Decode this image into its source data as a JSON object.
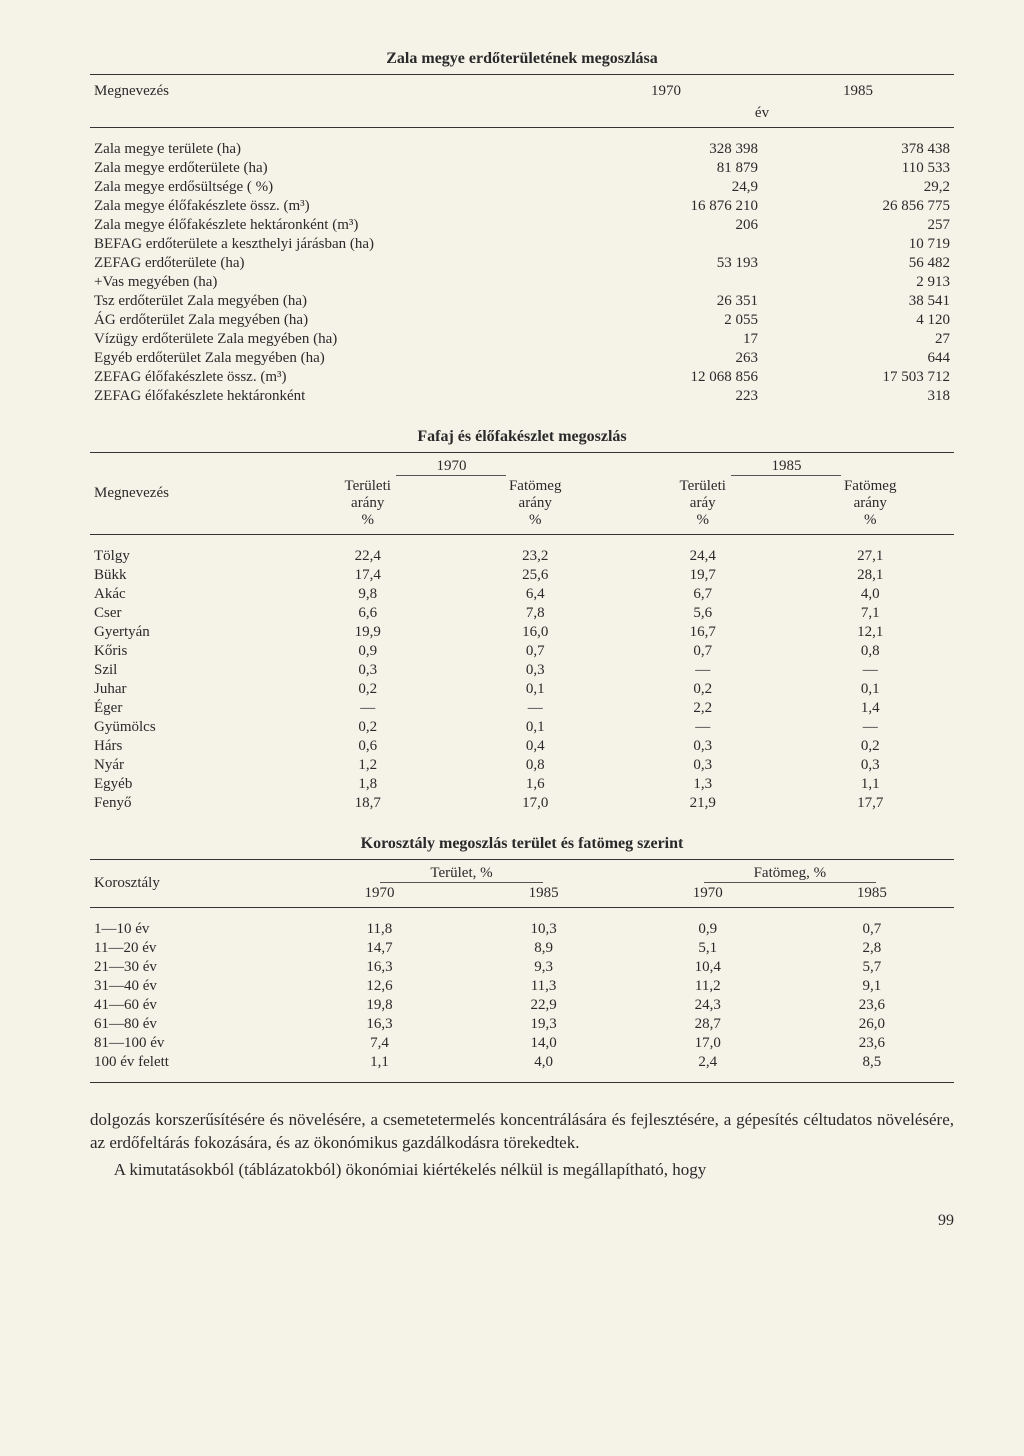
{
  "table1": {
    "title": "Zala megye erdőterületének megoszlása",
    "col_megnev": "Megnevezés",
    "col_1970": "1970",
    "col_1985": "1985",
    "col_ev": "év",
    "rows": [
      {
        "label": "Zala megye területe (ha)",
        "v1": "328 398",
        "v2": "378 438"
      },
      {
        "label": "Zala megye erdőterülete (ha)",
        "v1": "81 879",
        "v2": "110 533"
      },
      {
        "label": "Zala megye erdősültsége ( %)",
        "v1": "24,9",
        "v2": "29,2"
      },
      {
        "label": "Zala megye élőfakészlete össz. (m³)",
        "v1": "16 876 210",
        "v2": "26 856 775"
      },
      {
        "label": "Zala megye élőfakészlete hektáronként (m³)",
        "v1": "206",
        "v2": "257"
      },
      {
        "label": "BEFAG erdőterülete a keszthelyi járásban (ha)",
        "v1": "",
        "v2": "10 719"
      },
      {
        "label": "ZEFAG erdőterülete (ha)",
        "v1": "53 193",
        "v2": "56 482"
      },
      {
        "label": "+Vas megyében (ha)",
        "v1": "",
        "v2": "2 913"
      },
      {
        "label": "Tsz erdőterület Zala megyében (ha)",
        "v1": "26 351",
        "v2": "38 541"
      },
      {
        "label": "ÁG erdőterület Zala megyében (ha)",
        "v1": "2 055",
        "v2": "4 120"
      },
      {
        "label": "Vízügy erdőterülete Zala megyében (ha)",
        "v1": "17",
        "v2": "27"
      },
      {
        "label": "Egyéb erdőterület Zala megyében (ha)",
        "v1": "263",
        "v2": "644"
      },
      {
        "label": "ZEFAG élőfakészlete össz. (m³)",
        "v1": "12 068 856",
        "v2": "17 503 712"
      },
      {
        "label": "ZEFAG élőfakészlete hektáronként",
        "v1": "223",
        "v2": "318"
      }
    ]
  },
  "table2": {
    "title": "Fafaj és élőfakészlet megoszlás",
    "hdr_megnev": "Megnevezés",
    "hdr_1970": "1970",
    "hdr_1985": "1985",
    "hdr_ter": "Területi",
    "hdr_fat": "Fatömeg",
    "hdr_ar": "arány",
    "hdr_ary": "aráy",
    "hdr_pct": "%",
    "rows": [
      {
        "label": "Tölgy",
        "a": "22,4",
        "b": "23,2",
        "c": "24,4",
        "d": "27,1"
      },
      {
        "label": "Bükk",
        "a": "17,4",
        "b": "25,6",
        "c": "19,7",
        "d": "28,1"
      },
      {
        "label": "Akác",
        "a": "9,8",
        "b": "6,4",
        "c": "6,7",
        "d": "4,0"
      },
      {
        "label": "Cser",
        "a": "6,6",
        "b": "7,8",
        "c": "5,6",
        "d": "7,1"
      },
      {
        "label": "Gyertyán",
        "a": "19,9",
        "b": "16,0",
        "c": "16,7",
        "d": "12,1"
      },
      {
        "label": "Kőris",
        "a": "0,9",
        "b": "0,7",
        "c": "0,7",
        "d": "0,8"
      },
      {
        "label": "Szil",
        "a": "0,3",
        "b": "0,3",
        "c": "—",
        "d": "—"
      },
      {
        "label": "Juhar",
        "a": "0,2",
        "b": "0,1",
        "c": "0,2",
        "d": "0,1"
      },
      {
        "label": "Éger",
        "a": "—",
        "b": "—",
        "c": "2,2",
        "d": "1,4"
      },
      {
        "label": "Gyümölcs",
        "a": "0,2",
        "b": "0,1",
        "c": "—",
        "d": "—"
      },
      {
        "label": "Hárs",
        "a": "0,6",
        "b": "0,4",
        "c": "0,3",
        "d": "0,2"
      },
      {
        "label": "Nyár",
        "a": "1,2",
        "b": "0,8",
        "c": "0,3",
        "d": "0,3"
      },
      {
        "label": "Egyéb",
        "a": "1,8",
        "b": "1,6",
        "c": "1,3",
        "d": "1,1"
      },
      {
        "label": "Fenyő",
        "a": "18,7",
        "b": "17,0",
        "c": "21,9",
        "d": "17,7"
      }
    ]
  },
  "table3": {
    "title": "Korosztály megoszlás terület és fatömeg szerint",
    "hdr_kor": "Korosztály",
    "hdr_ter": "Terület, %",
    "hdr_fat": "Fatömeg, %",
    "hdr_1970": "1970",
    "hdr_1985": "1985",
    "rows": [
      {
        "label": "1—10 év",
        "a": "11,8",
        "b": "10,3",
        "c": "0,9",
        "d": "0,7"
      },
      {
        "label": "11—20 év",
        "a": "14,7",
        "b": "8,9",
        "c": "5,1",
        "d": "2,8"
      },
      {
        "label": "21—30 év",
        "a": "16,3",
        "b": "9,3",
        "c": "10,4",
        "d": "5,7"
      },
      {
        "label": "31—40 év",
        "a": "12,6",
        "b": "11,3",
        "c": "11,2",
        "d": "9,1"
      },
      {
        "label": "41—60 év",
        "a": "19,8",
        "b": "22,9",
        "c": "24,3",
        "d": "23,6"
      },
      {
        "label": "61—80 év",
        "a": "16,3",
        "b": "19,3",
        "c": "28,7",
        "d": "26,0"
      },
      {
        "label": "81—100 év",
        "a": "7,4",
        "b": "14,0",
        "c": "17,0",
        "d": "23,6"
      },
      {
        "label": "100 év felett",
        "a": "1,1",
        "b": "4,0",
        "c": "2,4",
        "d": "8,5"
      }
    ]
  },
  "body": {
    "p1": "dolgozás korszerűsítésére és növelésére, a csemetetermelés koncentrálására és fejlesztésére, a gépesítés céltudatos növelésére, az erdőfeltárás fokozására, és az ökonómikus gazdálkodásra törekedtek.",
    "p2": "A kimutatásokból (táblázatokból) ökonómiai kiértékelés nélkül is megállapítható, hogy"
  },
  "page_num": "99"
}
